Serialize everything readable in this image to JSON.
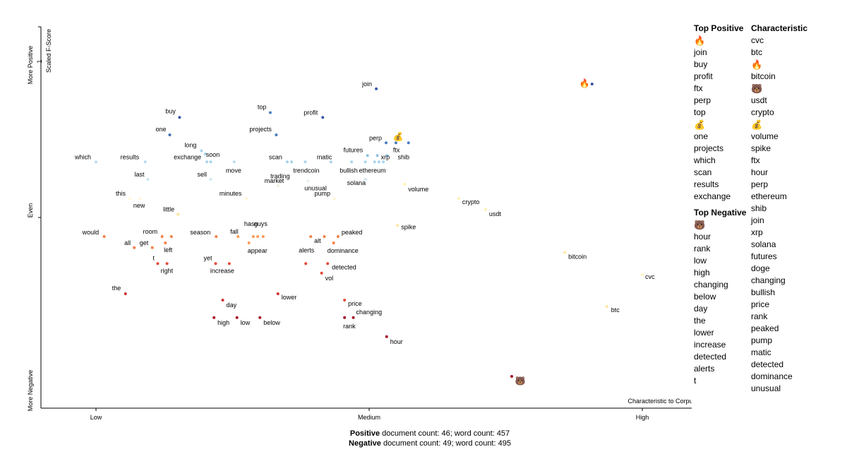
{
  "chart_data": {
    "type": "scatter",
    "title": "",
    "xlabel": "Characteristic to Corpus",
    "ylabel": "Scaled F-Score",
    "y_end_labels": {
      "top": "More Positive",
      "middle": "Even",
      "bottom": "More Negative"
    },
    "x_ticks": [
      {
        "value": 0.0,
        "label": "Low"
      },
      {
        "value": 0.5,
        "label": "Medium"
      },
      {
        "value": 1.0,
        "label": "High"
      }
    ],
    "xlim": [
      -0.1,
      1.1
    ],
    "ylim": [
      -0.1,
      1.05
    ],
    "y_tick_labels": [
      "1"
    ],
    "grid": false,
    "legend": "none",
    "points": [
      {
        "term": "join",
        "x": 0.513,
        "y": 0.905,
        "color": "#3a58a8"
      },
      {
        "term": "buy",
        "x": 0.153,
        "y": 0.815,
        "color": "#3a58a8"
      },
      {
        "term": "one",
        "x": 0.135,
        "y": 0.76,
        "color": "#3f6fb8"
      },
      {
        "term": "top",
        "x": 0.319,
        "y": 0.83,
        "color": "#4a7cc0"
      },
      {
        "term": "profit",
        "x": 0.415,
        "y": 0.815,
        "color": "#3a58a8"
      },
      {
        "term": "projects",
        "x": 0.33,
        "y": 0.76,
        "color": "#4a7cc0"
      },
      {
        "term": "perp",
        "x": 0.531,
        "y": 0.735,
        "color": "#4a7cc0"
      },
      {
        "term": "ftx",
        "x": 0.549,
        "y": 0.735,
        "color": "#4a7cc0"
      },
      {
        "term": "",
        "x": 0.572,
        "y": 0.735,
        "color": "#4a7cc0"
      },
      {
        "term": "futures",
        "x": 0.497,
        "y": 0.695,
        "color": "#8ec3e2"
      },
      {
        "term": "xrp",
        "x": 0.515,
        "y": 0.695,
        "color": "#8ec3e2"
      },
      {
        "term": "shib",
        "x": 0.533,
        "y": 0.695,
        "color": "#8ec3e2"
      },
      {
        "term": "long",
        "x": 0.193,
        "y": 0.71,
        "color": "#a9d4ec"
      },
      {
        "term": "soon",
        "x": 0.2,
        "y": 0.7,
        "color": "#a9d4ec"
      },
      {
        "term": "which",
        "x": 0.0,
        "y": 0.675,
        "color": "#b8dcf0"
      },
      {
        "term": "results",
        "x": 0.09,
        "y": 0.675,
        "color": "#b8dcf0"
      },
      {
        "term": "exchange",
        "x": 0.203,
        "y": 0.675,
        "color": "#a9d4ec"
      },
      {
        "term": "",
        "x": 0.21,
        "y": 0.675,
        "color": "#a9d4ec"
      },
      {
        "term": "move",
        "x": 0.253,
        "y": 0.675,
        "color": "#b8dcf0"
      },
      {
        "term": "scan",
        "x": 0.35,
        "y": 0.675,
        "color": "#a9d4ec"
      },
      {
        "term": "",
        "x": 0.358,
        "y": 0.675,
        "color": "#a9d4ec"
      },
      {
        "term": "trendcoin",
        "x": 0.383,
        "y": 0.675,
        "color": "#a9d4ec"
      },
      {
        "term": "matic",
        "x": 0.43,
        "y": 0.675,
        "color": "#a9d4ec"
      },
      {
        "term": "bullish",
        "x": 0.468,
        "y": 0.675,
        "color": "#a9d4ec"
      },
      {
        "term": "ethereum",
        "x": 0.493,
        "y": 0.675,
        "color": "#a9d4ec"
      },
      {
        "term": "",
        "x": 0.51,
        "y": 0.675,
        "color": "#a9d4ec"
      },
      {
        "term": "",
        "x": 0.518,
        "y": 0.675,
        "color": "#a9d4ec"
      },
      {
        "term": "",
        "x": 0.526,
        "y": 0.675,
        "color": "#a9d4ec"
      },
      {
        "term": "last",
        "x": 0.095,
        "y": 0.62,
        "color": "#cde6f2"
      },
      {
        "term": "sell",
        "x": 0.21,
        "y": 0.62,
        "color": "#cde6f2"
      },
      {
        "term": "trading",
        "x": 0.34,
        "y": 0.615,
        "color": "#e6eef0"
      },
      {
        "term": "market",
        "x": 0.333,
        "y": 0.6,
        "color": "#f0f0e0"
      },
      {
        "term": "unusual",
        "x": 0.388,
        "y": 0.615,
        "color": "#e6eef0"
      },
      {
        "term": "solana",
        "x": 0.493,
        "y": 0.62,
        "color": "#cde6f2"
      },
      {
        "term": "volume",
        "x": 0.565,
        "y": 0.605,
        "color": "#fff1b0"
      },
      {
        "term": "minutes",
        "x": 0.275,
        "y": 0.56,
        "color": "#fff7d8"
      },
      {
        "term": "pump",
        "x": 0.436,
        "y": 0.56,
        "color": "#fff7d8"
      },
      {
        "term": "this",
        "x": 0.062,
        "y": 0.56,
        "color": "#fff7d8"
      },
      {
        "term": "new",
        "x": 0.08,
        "y": 0.56,
        "color": "#fff7d8"
      },
      {
        "term": "crypto",
        "x": 0.664,
        "y": 0.56,
        "color": "#fff1b8"
      },
      {
        "term": "usdt",
        "x": 0.713,
        "y": 0.525,
        "color": "#fff0b0"
      },
      {
        "term": "little",
        "x": 0.15,
        "y": 0.51,
        "color": "#ffe09a"
      },
      {
        "term": "spike",
        "x": 0.552,
        "y": 0.475,
        "color": "#fee6a0"
      },
      {
        "term": "would",
        "x": 0.015,
        "y": 0.44,
        "color": "#f4804a"
      },
      {
        "term": "room",
        "x": 0.121,
        "y": 0.44,
        "color": "#f4804a"
      },
      {
        "term": "",
        "x": 0.138,
        "y": 0.44,
        "color": "#f4804a"
      },
      {
        "term": "all",
        "x": 0.07,
        "y": 0.405,
        "color": "#f4804a"
      },
      {
        "term": "get",
        "x": 0.103,
        "y": 0.405,
        "color": "#f4804a"
      },
      {
        "term": "left",
        "x": 0.127,
        "y": 0.42,
        "color": "#f4804a"
      },
      {
        "term": "season",
        "x": 0.22,
        "y": 0.44,
        "color": "#f4804a"
      },
      {
        "term": "fall",
        "x": 0.26,
        "y": 0.44,
        "color": "#fa9a58"
      },
      {
        "term": "hasn",
        "x": 0.288,
        "y": 0.44,
        "color": "#fa9a58"
      },
      {
        "term": "guys",
        "x": 0.306,
        "y": 0.44,
        "color": "#fa9a58"
      },
      {
        "term": "",
        "x": 0.296,
        "y": 0.44,
        "color": "#fa9a58"
      },
      {
        "term": "appear",
        "x": 0.28,
        "y": 0.42,
        "color": "#fa9a58"
      },
      {
        "term": "alt",
        "x": 0.393,
        "y": 0.44,
        "color": "#f4804a"
      },
      {
        "term": "",
        "x": 0.418,
        "y": 0.44,
        "color": "#f4804a"
      },
      {
        "term": "peaked",
        "x": 0.443,
        "y": 0.44,
        "color": "#f4804a"
      },
      {
        "term": "dominance",
        "x": 0.435,
        "y": 0.42,
        "color": "#f4804a"
      },
      {
        "term": "t",
        "x": 0.113,
        "y": 0.355,
        "color": "#e64a36"
      },
      {
        "term": "right",
        "x": 0.13,
        "y": 0.355,
        "color": "#e64a36"
      },
      {
        "term": "yet",
        "x": 0.219,
        "y": 0.355,
        "color": "#e64a36"
      },
      {
        "term": "increase",
        "x": 0.244,
        "y": 0.355,
        "color": "#e64a36"
      },
      {
        "term": "alerts",
        "x": 0.384,
        "y": 0.355,
        "color": "#e64a36"
      },
      {
        "term": "detected",
        "x": 0.424,
        "y": 0.355,
        "color": "#e64a36"
      },
      {
        "term": "vol",
        "x": 0.413,
        "y": 0.325,
        "color": "#e64a36"
      },
      {
        "term": "the",
        "x": 0.054,
        "y": 0.26,
        "color": "#d03030"
      },
      {
        "term": "lower",
        "x": 0.333,
        "y": 0.26,
        "color": "#d03030"
      },
      {
        "term": "day",
        "x": 0.232,
        "y": 0.24,
        "color": "#d03030"
      },
      {
        "term": "price",
        "x": 0.455,
        "y": 0.24,
        "color": "#e64a36"
      },
      {
        "term": "high",
        "x": 0.216,
        "y": 0.185,
        "color": "#a50f26"
      },
      {
        "term": "low",
        "x": 0.258,
        "y": 0.185,
        "color": "#a50f26"
      },
      {
        "term": "below",
        "x": 0.3,
        "y": 0.185,
        "color": "#a50f26"
      },
      {
        "term": "rank",
        "x": 0.455,
        "y": 0.185,
        "color": "#a50f26"
      },
      {
        "term": "changing",
        "x": 0.471,
        "y": 0.185,
        "color": "#a50f26"
      },
      {
        "term": "hour",
        "x": 0.532,
        "y": 0.125,
        "color": "#a50f26"
      },
      {
        "term": "bitcoin",
        "x": 0.858,
        "y": 0.39,
        "color": "#fee6a0"
      },
      {
        "term": "cvc",
        "x": 1.0,
        "y": 0.32,
        "color": "#fff1b8"
      },
      {
        "term": "btc",
        "x": 0.935,
        "y": 0.22,
        "color": "#fee6a0"
      },
      {
        "term": "",
        "x": 0.908,
        "y": 0.92,
        "color": "#3a4ea0"
      },
      {
        "term": "",
        "x": 0.761,
        "y": 0.0,
        "color": "#a50f26"
      }
    ],
    "emoji_points": [
      {
        "glyph": "🔥",
        "x": 0.894,
        "y": 0.925
      },
      {
        "glyph": "💰",
        "x": 0.553,
        "y": 0.757
      },
      {
        "glyph": "🐻",
        "x": 0.777,
        "y": -0.012
      }
    ],
    "label_positions": {}
  },
  "side_panel": {
    "top_positive": {
      "heading": "Top Positive",
      "items": [
        "🔥",
        "join",
        "buy",
        "profit",
        "ftx",
        "perp",
        "top",
        "💰",
        "one",
        "projects",
        "which",
        "scan",
        "results",
        "exchange"
      ]
    },
    "top_negative": {
      "heading": "Top Negative",
      "items": [
        "🐻",
        "hour",
        "rank",
        "low",
        "high",
        "changing",
        "below",
        "day",
        "the",
        "lower",
        "increase",
        "detected",
        "alerts",
        "t"
      ]
    },
    "characteristic": {
      "heading": "Characteristic",
      "items": [
        "cvc",
        "btc",
        "🔥",
        "bitcoin",
        "🐻",
        "usdt",
        "crypto",
        "💰",
        "volume",
        "spike",
        "ftx",
        "hour",
        "perp",
        "ethereum",
        "shib",
        "join",
        "xrp",
        "solana",
        "futures",
        "doge",
        "changing",
        "bullish",
        "price",
        "rank",
        "peaked",
        "pump",
        "matic",
        "detected",
        "dominance",
        "unusual"
      ]
    }
  },
  "footer": {
    "positive_label": "Positive",
    "positive_text": " document count: 46; word count: 457",
    "negative_label": "Negative",
    "negative_text": " document count: 49; word count: 495"
  }
}
